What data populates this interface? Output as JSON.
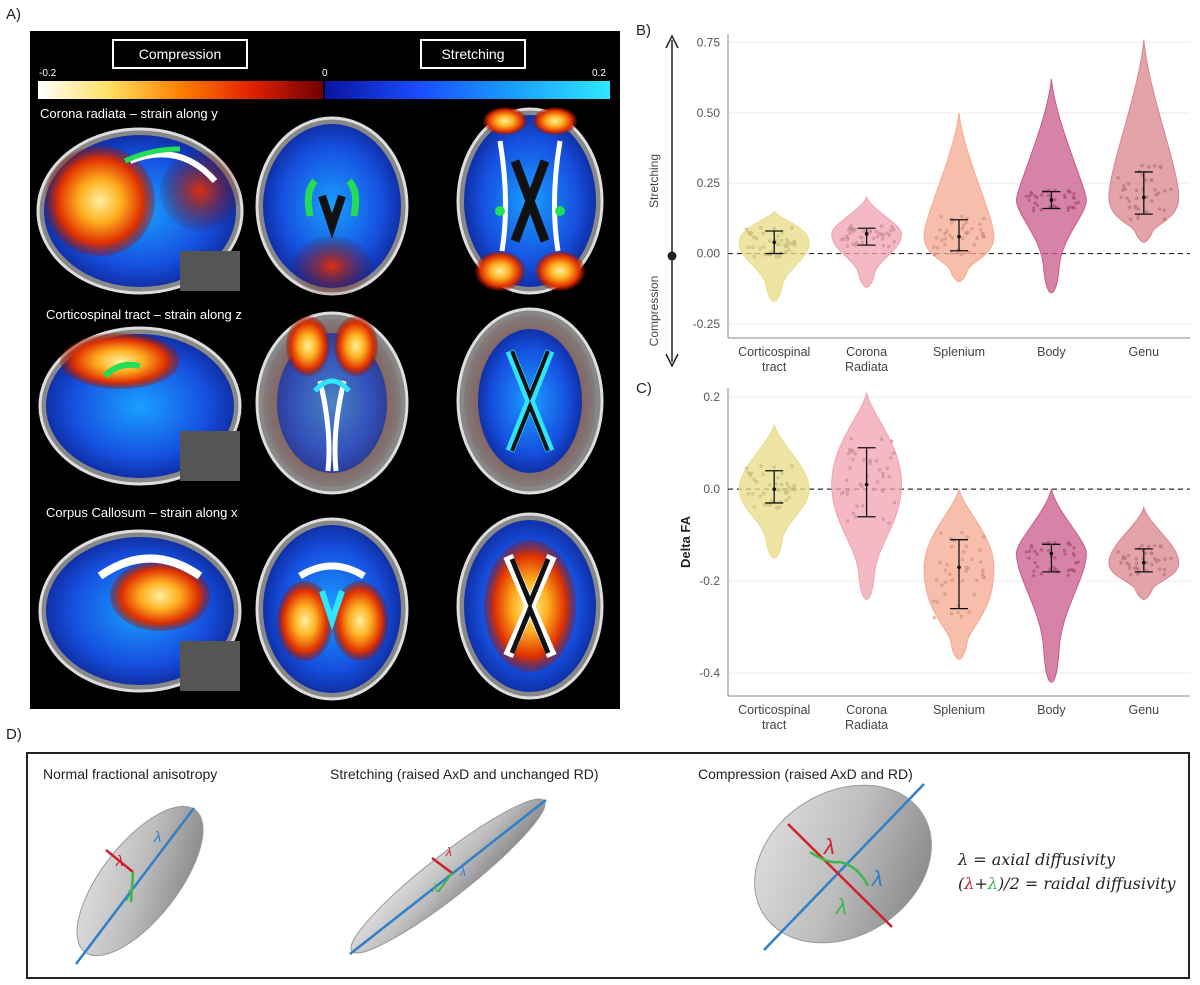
{
  "panels": {
    "a": "A)",
    "b": "B)",
    "c": "C)",
    "d": "D)"
  },
  "panel_a": {
    "compression_label": "Compression",
    "stretching_label": "Stretching",
    "scale_min": "-0.2",
    "scale_zero": "0",
    "scale_max": "0.2",
    "rows": [
      "Corona radiata – strain along y",
      "Corticospinal tract – strain along z",
      "Corpus Callosum – strain along x"
    ],
    "colors": {
      "compression": [
        "#ffffff",
        "#ffd24a",
        "#ff5a00",
        "#c01010",
        "#500000"
      ],
      "stretching": [
        "#0a1aa0",
        "#1a4dff",
        "#1aa5ff",
        "#30e6ff"
      ],
      "tract": "#22dd55"
    }
  },
  "panel_b": {
    "side_stretching": "Stretching",
    "side_compression": "Compression",
    "chart_data": {
      "type": "violin",
      "categories": [
        "Corticospinal\ntract",
        "Corona\nRadiata",
        "Splenium",
        "Body",
        "Genu"
      ],
      "ylim": [
        -0.3,
        0.78
      ],
      "yticks": [
        "0.75",
        "0.50",
        "0.25",
        "0.00",
        "-0.25"
      ],
      "ytick_values": [
        0.75,
        0.5,
        0.25,
        0.0,
        -0.25
      ],
      "reference_line": 0.0,
      "colors": [
        "#e8dc86",
        "#f0a2b0",
        "#f5a890",
        "#c85a8a",
        "#d8848c"
      ],
      "series": [
        {
          "name": "Corticospinal\ntract",
          "median": 0.04,
          "q1": 0.0,
          "q3": 0.08,
          "min": -0.17,
          "max": 0.15
        },
        {
          "name": "Corona\nRadiata",
          "median": 0.07,
          "q1": 0.03,
          "q3": 0.09,
          "min": -0.12,
          "max": 0.2
        },
        {
          "name": "Splenium",
          "median": 0.06,
          "q1": 0.01,
          "q3": 0.12,
          "min": -0.1,
          "max": 0.5
        },
        {
          "name": "Body",
          "median": 0.19,
          "q1": 0.16,
          "q3": 0.22,
          "min": -0.14,
          "max": 0.62
        },
        {
          "name": "Genu",
          "median": 0.2,
          "q1": 0.14,
          "q3": 0.29,
          "min": 0.04,
          "max": 0.76
        }
      ]
    }
  },
  "panel_c": {
    "chart_data": {
      "type": "violin",
      "categories": [
        "Corticospinal\ntract",
        "Corona\nRadiata",
        "Splenium",
        "Body",
        "Genu"
      ],
      "ylabel": "Delta FA",
      "ylim": [
        -0.45,
        0.22
      ],
      "yticks": [
        "0.2",
        "0.0",
        "-0.2",
        "-0.4"
      ],
      "ytick_values": [
        0.2,
        0.0,
        -0.2,
        -0.4
      ],
      "reference_line": 0.0,
      "colors": [
        "#e8dc86",
        "#f0a2b0",
        "#f5a890",
        "#c85a8a",
        "#d8848c"
      ],
      "series": [
        {
          "name": "Corticospinal\ntract",
          "median": 0.0,
          "q1": -0.03,
          "q3": 0.04,
          "min": -0.15,
          "max": 0.14
        },
        {
          "name": "Corona\nRadiata",
          "median": 0.01,
          "q1": -0.06,
          "q3": 0.09,
          "min": -0.24,
          "max": 0.21
        },
        {
          "name": "Splenium",
          "median": -0.17,
          "q1": -0.26,
          "q3": -0.11,
          "min": -0.37,
          "max": 0.0
        },
        {
          "name": "Body",
          "median": -0.14,
          "q1": -0.18,
          "q3": -0.12,
          "min": -0.42,
          "max": 0.0
        },
        {
          "name": "Genu",
          "median": -0.16,
          "q1": -0.18,
          "q3": -0.13,
          "min": -0.24,
          "max": -0.04
        }
      ]
    }
  },
  "panel_d": {
    "titles": [
      "Normal fractional anisotropy",
      "Stretching (raised AxD and unchanged RD)",
      "Compression (raised AxD and RD)"
    ],
    "lambda": "λ",
    "legend_axial": "λ = axial diffusivity",
    "legend_radial_prefix": "(",
    "legend_radial_suffix": ")/2 = raidal diffusivity",
    "legend_plus": "+",
    "colors": {
      "axial": "#2f7fc9",
      "radial1": "#d0202a",
      "radial2": "#3cb84a"
    }
  }
}
